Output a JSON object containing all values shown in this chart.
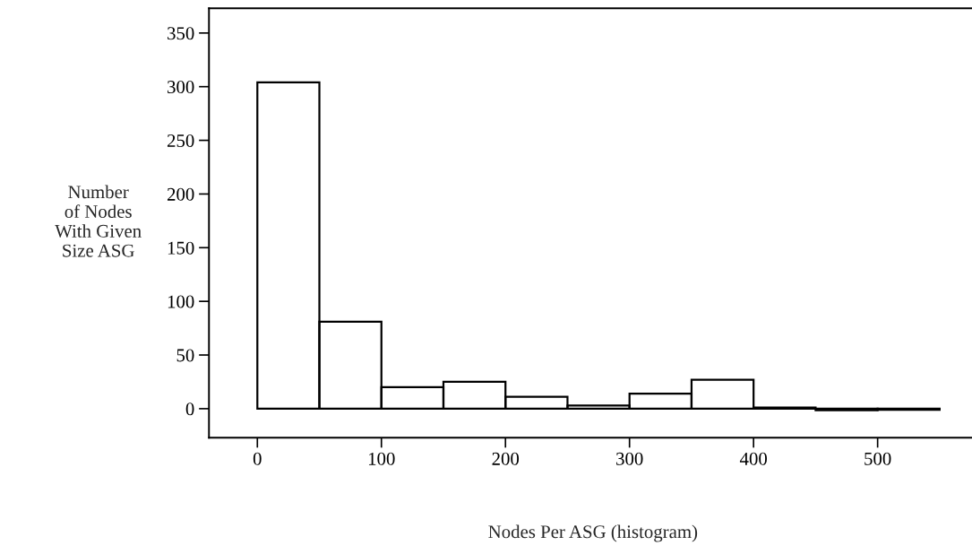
{
  "chart_data": {
    "type": "histogram",
    "xlabel": "Nodes Per ASG (histogram)",
    "ylabel": "Number\nof Nodes\nWith Given\nSize ASG",
    "bins": [
      0,
      50,
      100,
      150,
      200,
      250,
      300,
      350,
      400,
      450,
      500,
      550
    ],
    "values": [
      304,
      81,
      20,
      25,
      11,
      3,
      14,
      27,
      1,
      -1.5,
      -1
    ],
    "color": "#000000",
    "xlim": [
      -39,
      580
    ],
    "ylim": [
      -27,
      373
    ],
    "xticks": [
      0,
      100,
      200,
      300,
      400,
      500
    ],
    "yticks": [
      0,
      50,
      100,
      150,
      200,
      250,
      300,
      350
    ],
    "grid": false
  }
}
